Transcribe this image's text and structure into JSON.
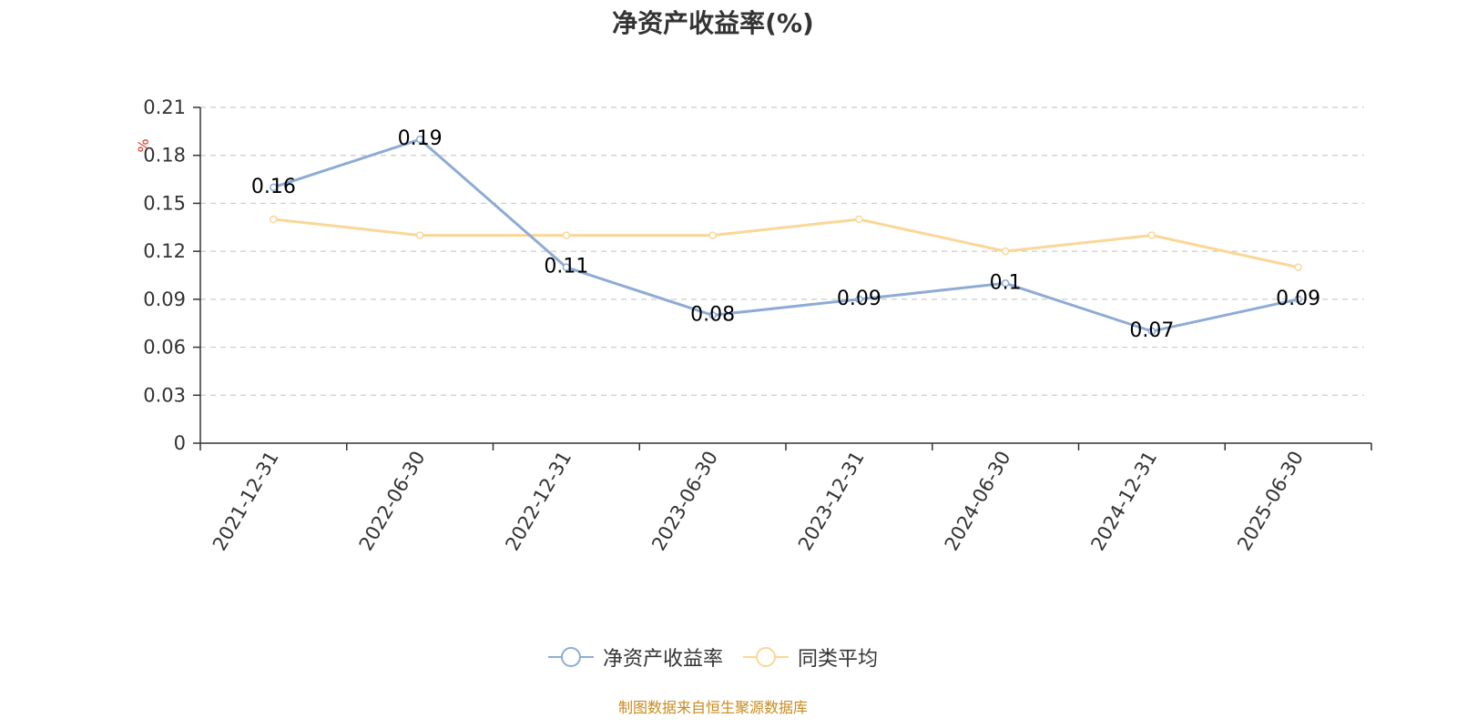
{
  "chart_data": {
    "type": "line",
    "title": "净资产收益率(%)",
    "ylabel": "%",
    "ylim": [
      0,
      0.21
    ],
    "yticks": [
      0,
      0.03,
      0.06,
      0.09,
      0.12,
      0.15,
      0.18,
      0.21
    ],
    "ytick_labels": [
      "0",
      "0.03",
      "0.06",
      "0.09",
      "0.12",
      "0.15",
      "0.18",
      "0.21"
    ],
    "grid": true,
    "legend_position": "bottom-center",
    "x": [
      "2021-12-31",
      "2022-06-30",
      "2022-12-31",
      "2023-06-30",
      "2023-12-31",
      "2024-06-30",
      "2024-12-31",
      "2025-06-30"
    ],
    "series": [
      {
        "name": "净资产收益率",
        "color": "#8eabd6",
        "values": [
          0.16,
          0.19,
          0.11,
          0.08,
          0.09,
          0.1,
          0.07,
          0.09
        ],
        "labels": [
          "0.16",
          "0.19",
          "0.11",
          "0.08",
          "0.09",
          "0.1",
          "0.07",
          "0.09"
        ]
      },
      {
        "name": "同类平均",
        "color": "#fad797",
        "values": [
          0.14,
          0.13,
          0.13,
          0.13,
          0.14,
          0.12,
          0.13,
          0.11
        ]
      }
    ]
  },
  "source_note": "制图数据来自恒生聚源数据库"
}
